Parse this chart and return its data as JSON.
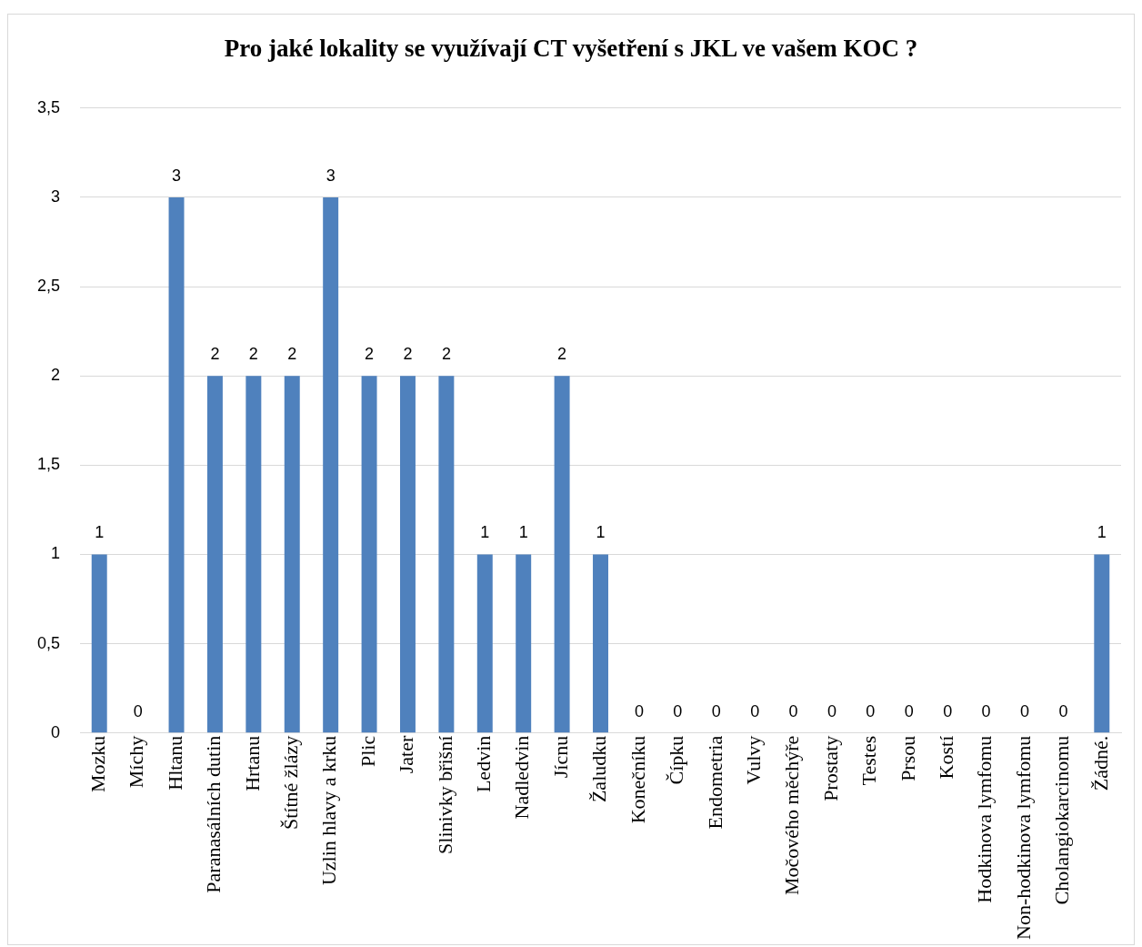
{
  "chart_data": {
    "type": "bar",
    "title": "Pro jaké lokality se využívají CT vyšetření s JKL ve vašem KOC ?",
    "categories": [
      "Mozku",
      "Míchy",
      "Hltanu",
      "Paranasálních dutin",
      "Hrtanu",
      "Štítné žlázy",
      "Uzlin hlavy a krku",
      "Plic",
      "Jater",
      "Slinivky břišní",
      "Ledvin",
      "Nadledvin",
      "Jícnu",
      "Žaludku",
      "Konečníku",
      "Čípku",
      "Endometria",
      "Vulvy",
      "Močového měchýře",
      "Prostaty",
      "Testes",
      "Prsou",
      "Kostí",
      "Hodkinova lymfomu",
      "Non-hodkinova lymfomu",
      "Cholangiokarcinomu",
      "Žádné."
    ],
    "values": [
      1,
      0,
      3,
      2,
      2,
      2,
      3,
      2,
      2,
      2,
      1,
      1,
      2,
      1,
      0,
      0,
      0,
      0,
      0,
      0,
      0,
      0,
      0,
      0,
      0,
      0,
      1
    ],
    "color": "#4f81bd",
    "ylim": [
      0,
      3.5
    ],
    "yticks": [
      0,
      {
        "value": 0.5,
        "label": "0,5"
      },
      1,
      {
        "value": 1.5,
        "label": "1,5"
      },
      2,
      {
        "value": 2.5,
        "label": "2,5"
      },
      3,
      {
        "value": 3.5,
        "label": "3,5"
      }
    ],
    "grid": "y",
    "data_labels": true
  }
}
